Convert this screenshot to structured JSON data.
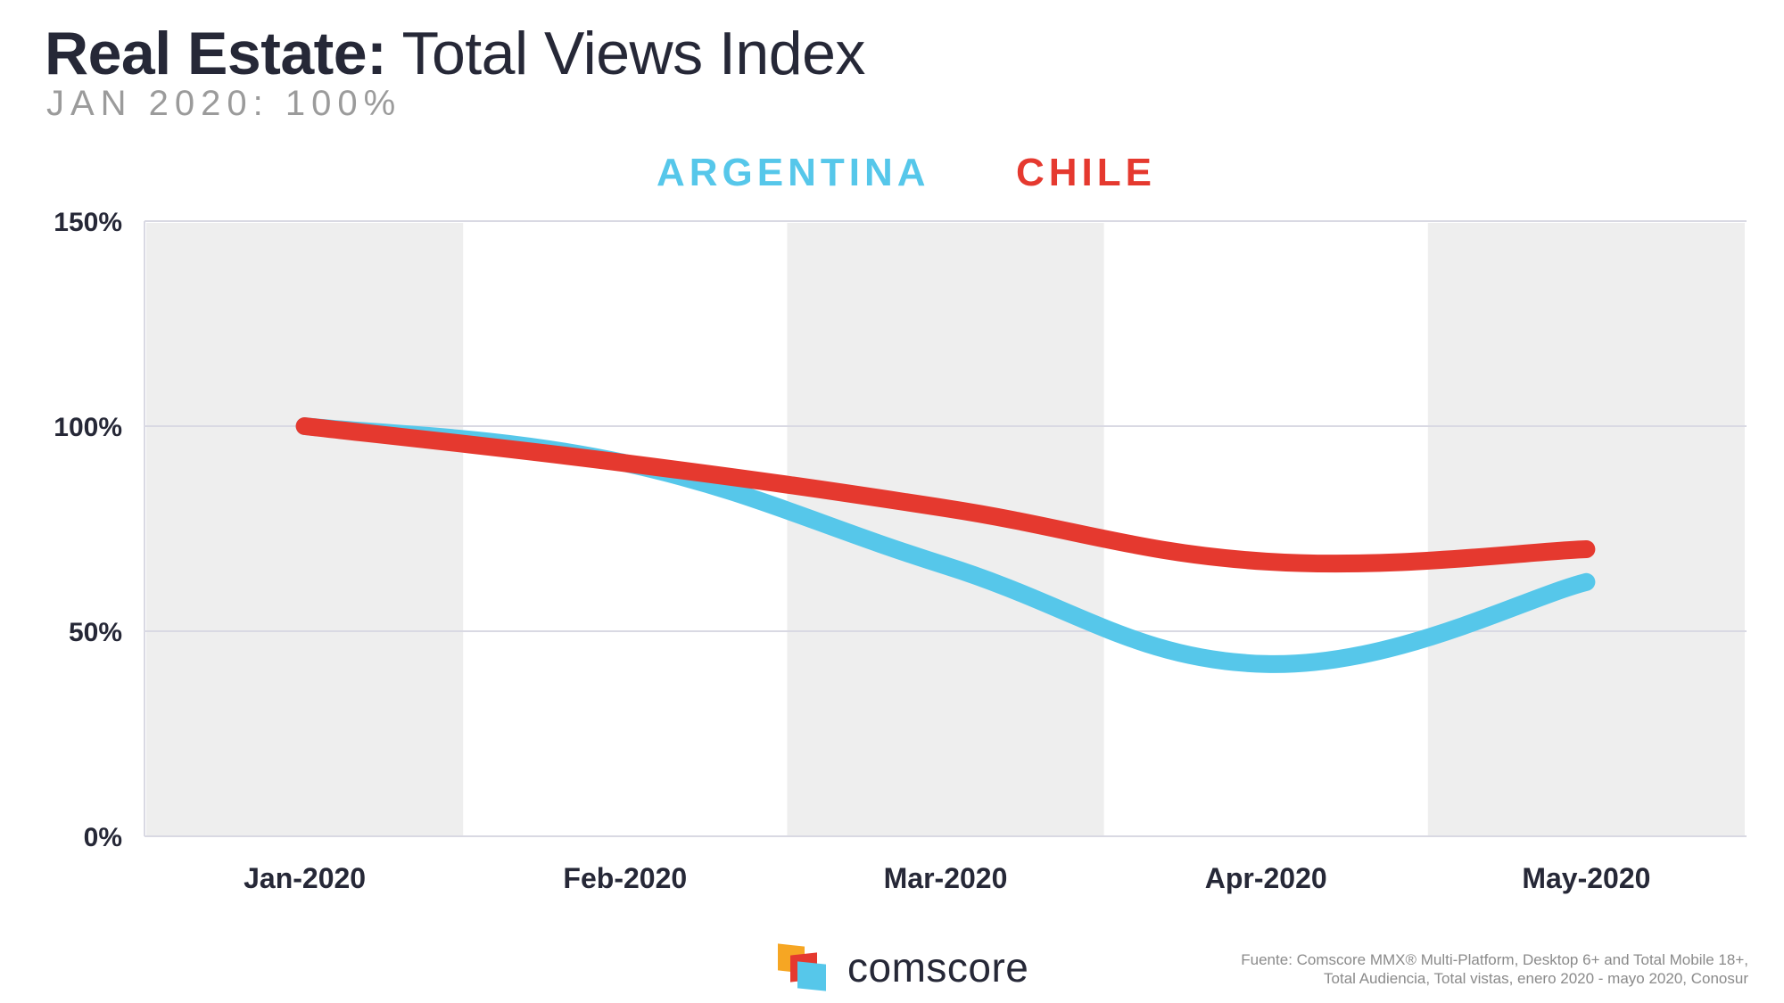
{
  "header": {
    "title_bold": "Real Estate:",
    "title_light": "Total Views Index",
    "subtitle": "JAN 2020: 100%"
  },
  "legend": {
    "argentina": "ARGENTINA",
    "chile": "CHILE"
  },
  "colors": {
    "argentina": "#56c7ea",
    "chile": "#e5392f",
    "band": "#eeeeee",
    "grid": "#d9d9e3",
    "text": "#262837"
  },
  "chart_data": {
    "type": "line",
    "title": "Real Estate: Total Views Index",
    "subtitle": "JAN 2020: 100%",
    "categories": [
      "Jan-2020",
      "Feb-2020",
      "Mar-2020",
      "Apr-2020",
      "May-2020"
    ],
    "series": [
      {
        "name": "ARGENTINA",
        "values": [
          100,
          91,
          66,
          42,
          62
        ]
      },
      {
        "name": "CHILE",
        "values": [
          100,
          91,
          80,
          67,
          70
        ]
      }
    ],
    "y_ticks": [
      "0%",
      "50%",
      "100%",
      "150%"
    ],
    "ylim": [
      0,
      150
    ],
    "xlabel": "",
    "ylabel": "",
    "legend_position": "top-center",
    "grid": true
  },
  "footer": {
    "logo_text": "comscore",
    "source_line1": "Fuente: Comscore MMX® Multi-Platform, Desktop 6+ and Total Mobile 18+,",
    "source_line2": "Total Audiencia, Total vistas, enero 2020 - mayo 2020, Conosur"
  }
}
